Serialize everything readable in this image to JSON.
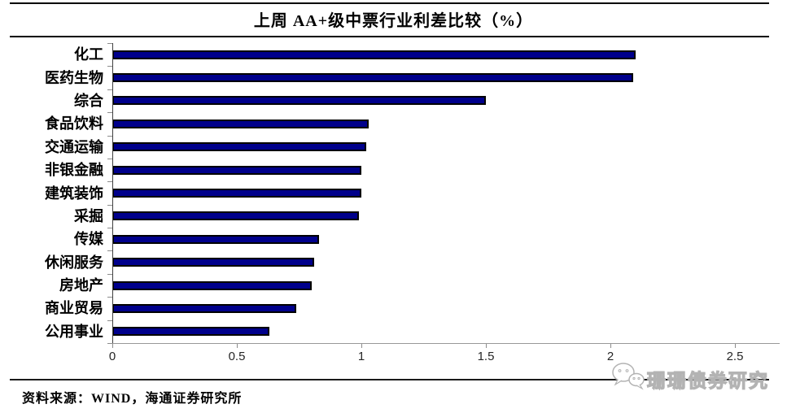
{
  "chart_data": {
    "type": "bar",
    "orientation": "horizontal",
    "title": "上周 AA+级中票行业利差比较（%）",
    "categories": [
      "化工",
      "医药生物",
      "综合",
      "食品饮料",
      "交通运输",
      "非银金融",
      "建筑装饰",
      "采掘",
      "传媒",
      "休闲服务",
      "房地产",
      "商业贸易",
      "公用事业"
    ],
    "values": [
      2.1,
      2.09,
      1.5,
      1.03,
      1.02,
      1.0,
      1.0,
      0.99,
      0.83,
      0.81,
      0.8,
      0.74,
      0.63
    ],
    "xlabel": "",
    "ylabel": "",
    "xlim": [
      0,
      2.5
    ],
    "xticks": [
      0,
      0.5,
      1,
      1.5,
      2,
      2.5
    ],
    "xtick_labels": [
      "0",
      "0.5",
      "1",
      "1.5",
      "2",
      "2.5"
    ],
    "grid": false,
    "legend": false,
    "bar_color": "#00008B",
    "bar_border_color": "#000000",
    "axis_color": "#999999"
  },
  "footer": {
    "source_text": "资料来源：WIND，海通证券研究所"
  },
  "watermark": {
    "icon": "wechat-icon",
    "text": "珊珊债券研究",
    "color": "#b3b3b3"
  }
}
